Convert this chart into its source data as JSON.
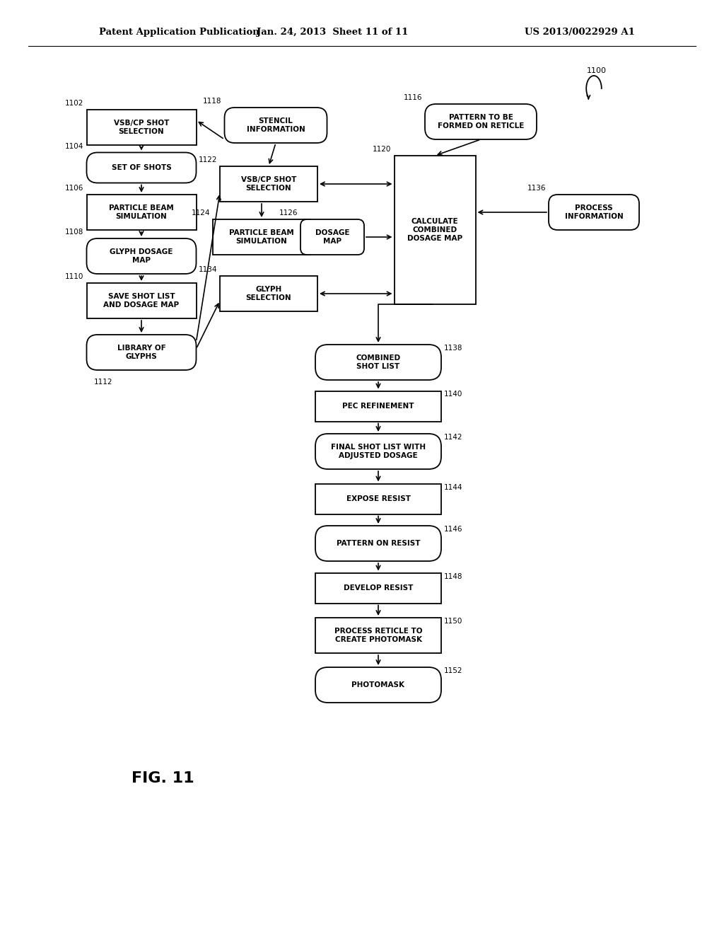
{
  "header_left": "Patent Application Publication",
  "header_mid": "Jan. 24, 2013  Sheet 11 of 11",
  "header_right": "US 2013/0022929 A1",
  "figure_label": "FIG. 11",
  "bg_color": "#ffffff",
  "line_color": "#000000"
}
